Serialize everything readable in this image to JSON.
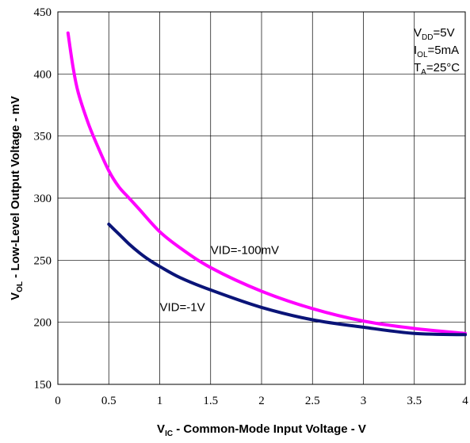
{
  "chart_data": {
    "type": "line",
    "xlabel": {
      "main": "V",
      "sub": "IC",
      "rest": " - Common-Mode Input Voltage - V"
    },
    "ylabel": {
      "main": "V",
      "sub": "OL",
      "rest": " - Low-Level Output Voltage - mV"
    },
    "xlim": [
      0,
      4
    ],
    "ylim": [
      150,
      450
    ],
    "xticks": [
      0,
      0.5,
      1,
      1.5,
      2,
      2.5,
      3,
      3.5,
      4
    ],
    "xtick_labels": [
      "0",
      "0.5",
      "1",
      "1.5",
      "2",
      "2.5",
      "3",
      "3.5",
      "4"
    ],
    "yticks": [
      150,
      200,
      250,
      300,
      350,
      400,
      450
    ],
    "ytick_labels": [
      "150",
      "200",
      "250",
      "300",
      "350",
      "400",
      "450"
    ],
    "grid": true,
    "conditions": [
      {
        "main": "V",
        "sub": "DD",
        "rest": "=5V"
      },
      {
        "main": "I",
        "sub": "OL",
        "rest": "=5mA"
      },
      {
        "main": "T",
        "sub": "A",
        "rest": "=25°C"
      }
    ],
    "series": [
      {
        "name": "VID=-100mV",
        "color": "#ff00ff",
        "x": [
          0.1,
          0.15,
          0.2,
          0.3,
          0.4,
          0.5,
          0.6,
          0.7,
          0.8,
          1.0,
          1.2,
          1.5,
          2.0,
          2.5,
          3.0,
          3.5,
          4.0
        ],
        "y": [
          433,
          405,
          385,
          360,
          340,
          322,
          309,
          300,
          291,
          273,
          260,
          244,
          225,
          211,
          201,
          195,
          191
        ]
      },
      {
        "name": "VID=-1V",
        "color": "#0a1478",
        "x": [
          0.5,
          0.6,
          0.7,
          0.8,
          0.9,
          1.0,
          1.2,
          1.5,
          2.0,
          2.5,
          3.0,
          3.5,
          4.0
        ],
        "y": [
          279,
          271,
          263,
          256,
          250,
          245,
          236,
          226,
          212,
          202,
          196,
          191,
          190
        ]
      }
    ],
    "series_labels": [
      {
        "text": "VID=-100mV",
        "x": 1.5,
        "y": 255
      },
      {
        "text": "VID=-1V",
        "x": 1.0,
        "y": 209
      }
    ]
  }
}
